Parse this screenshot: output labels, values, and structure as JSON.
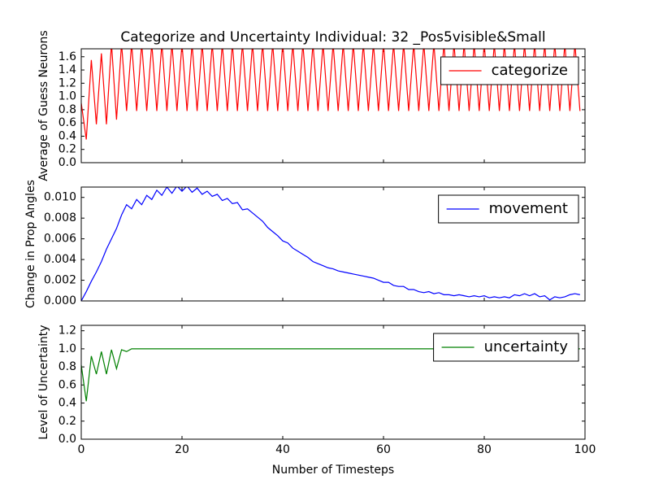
{
  "chart_data": [
    {
      "type": "line",
      "title": "Categorize and Uncertainty Individual: 32 _Pos5visible&Small",
      "ylabel": "Average of Guess Neurons",
      "x": [
        0,
        1,
        2,
        3,
        4,
        5,
        6,
        7,
        8,
        9,
        10,
        11,
        12,
        13,
        14,
        15,
        16,
        17,
        18,
        19,
        20,
        21,
        22,
        23,
        24,
        25,
        26,
        27,
        28,
        29,
        30,
        31,
        32,
        33,
        34,
        35,
        36,
        37,
        38,
        39,
        40,
        41,
        42,
        43,
        44,
        45,
        46,
        47,
        48,
        49,
        50,
        51,
        52,
        53,
        54,
        55,
        56,
        57,
        58,
        59,
        60,
        61,
        62,
        63,
        64,
        65,
        66,
        67,
        68,
        69,
        70,
        71,
        72,
        73,
        74,
        75,
        76,
        77,
        78,
        79,
        80,
        81,
        82,
        83,
        84,
        85,
        86,
        87,
        88,
        89,
        90,
        91,
        92,
        93,
        94,
        95,
        96,
        97,
        98,
        99
      ],
      "series": [
        {
          "name": "categorize",
          "color": "#ff0000",
          "values": [
            0.9,
            0.35,
            1.55,
            0.58,
            1.65,
            0.58,
            1.8,
            0.65,
            1.8,
            0.78,
            1.8,
            0.78,
            1.8,
            0.78,
            1.8,
            0.78,
            1.8,
            0.78,
            1.8,
            0.78,
            1.8,
            0.78,
            1.8,
            0.78,
            1.8,
            0.78,
            1.8,
            0.78,
            1.8,
            0.78,
            1.8,
            0.78,
            1.8,
            0.78,
            1.8,
            0.78,
            1.8,
            0.78,
            1.8,
            0.78,
            1.8,
            0.78,
            1.8,
            0.78,
            1.8,
            0.78,
            1.8,
            0.78,
            1.8,
            0.78,
            1.8,
            0.78,
            1.8,
            0.78,
            1.8,
            0.78,
            1.8,
            0.78,
            1.8,
            0.78,
            1.8,
            0.78,
            1.8,
            0.78,
            1.8,
            0.78,
            1.8,
            0.78,
            1.8,
            0.78,
            1.8,
            0.78,
            1.8,
            0.78,
            1.8,
            0.78,
            1.8,
            0.78,
            1.8,
            0.78,
            1.8,
            0.78,
            1.8,
            0.78,
            1.8,
            0.78,
            1.8,
            0.78,
            1.8,
            0.78,
            1.8,
            0.78,
            1.8,
            0.78,
            1.8,
            0.78,
            1.8,
            0.78,
            1.8,
            0.78
          ]
        }
      ],
      "xlim": [
        0,
        100
      ],
      "ylim": [
        0,
        1.72
      ],
      "yticks": [
        {
          "value": 0,
          "label": "0.0"
        },
        {
          "value": 0.2,
          "label": "0.2"
        },
        {
          "value": 0.4,
          "label": "0.4"
        },
        {
          "value": 0.6,
          "label": "0.6"
        },
        {
          "value": 0.8,
          "label": "0.8"
        },
        {
          "value": 1,
          "label": "1.0"
        },
        {
          "value": 1.2,
          "label": "1.2"
        },
        {
          "value": 1.4,
          "label": "1.4"
        },
        {
          "value": 1.6,
          "label": "1.6"
        }
      ],
      "legend": "upper right"
    },
    {
      "type": "line",
      "ylabel": "Change in Prop Angles",
      "x": [
        0,
        1,
        2,
        3,
        4,
        5,
        6,
        7,
        8,
        9,
        10,
        11,
        12,
        13,
        14,
        15,
        16,
        17,
        18,
        19,
        20,
        21,
        22,
        23,
        24,
        25,
        26,
        27,
        28,
        29,
        30,
        31,
        32,
        33,
        34,
        35,
        36,
        37,
        38,
        39,
        40,
        41,
        42,
        43,
        44,
        45,
        46,
        47,
        48,
        49,
        50,
        51,
        52,
        53,
        54,
        55,
        56,
        57,
        58,
        59,
        60,
        61,
        62,
        63,
        64,
        65,
        66,
        67,
        68,
        69,
        70,
        71,
        72,
        73,
        74,
        75,
        76,
        77,
        78,
        79,
        80,
        81,
        82,
        83,
        84,
        85,
        86,
        87,
        88,
        89,
        90,
        91,
        92,
        93,
        94,
        95,
        96,
        97,
        98,
        99
      ],
      "series": [
        {
          "name": "movement",
          "color": "#0000ff",
          "values": [
            0.0,
            0.0009,
            0.0019,
            0.0028,
            0.0038,
            0.005,
            0.006,
            0.007,
            0.0083,
            0.0093,
            0.0089,
            0.0098,
            0.0093,
            0.0102,
            0.0098,
            0.0107,
            0.0102,
            0.011,
            0.0104,
            0.0111,
            0.0106,
            0.0111,
            0.0105,
            0.0109,
            0.0103,
            0.0106,
            0.0101,
            0.0103,
            0.0097,
            0.0099,
            0.0094,
            0.0095,
            0.0088,
            0.0089,
            0.0085,
            0.0081,
            0.0077,
            0.0071,
            0.0067,
            0.0063,
            0.0058,
            0.0056,
            0.0051,
            0.0048,
            0.0045,
            0.0042,
            0.0038,
            0.0036,
            0.0034,
            0.0032,
            0.0031,
            0.0029,
            0.0028,
            0.0027,
            0.0026,
            0.0025,
            0.0024,
            0.0023,
            0.0022,
            0.002,
            0.0018,
            0.0018,
            0.0015,
            0.0014,
            0.0014,
            0.0011,
            0.0011,
            0.0009,
            0.0008,
            0.0009,
            0.0007,
            0.0008,
            0.0006,
            0.0006,
            0.0005,
            0.0006,
            0.0005,
            0.0004,
            0.0005,
            0.0004,
            0.0005,
            0.0003,
            0.0004,
            0.0003,
            0.0004,
            0.0003,
            0.0006,
            0.0005,
            0.0007,
            0.0005,
            0.0007,
            0.0004,
            0.0005,
            0.0001,
            0.0004,
            0.0003,
            0.0004,
            0.0006,
            0.0007,
            0.0006
          ]
        }
      ],
      "xlim": [
        0,
        100
      ],
      "ylim": [
        0,
        0.011
      ],
      "yticks": [
        {
          "value": 0,
          "label": "0.000"
        },
        {
          "value": 0.002,
          "label": "0.002"
        },
        {
          "value": 0.004,
          "label": "0.004"
        },
        {
          "value": 0.006,
          "label": "0.006"
        },
        {
          "value": 0.008,
          "label": "0.008"
        },
        {
          "value": 0.01,
          "label": "0.010"
        }
      ],
      "legend": "upper right"
    },
    {
      "type": "line",
      "ylabel": "Level of Uncertainty",
      "xlabel": "Number of Timesteps",
      "x": [
        0,
        1,
        2,
        3,
        4,
        5,
        6,
        7,
        8,
        9,
        10,
        11,
        12,
        13,
        14,
        15,
        16,
        17,
        18,
        19,
        20,
        21,
        22,
        23,
        24,
        25,
        26,
        27,
        28,
        29,
        30,
        31,
        32,
        33,
        34,
        35,
        36,
        37,
        38,
        39,
        40,
        41,
        42,
        43,
        44,
        45,
        46,
        47,
        48,
        49,
        50,
        51,
        52,
        53,
        54,
        55,
        56,
        57,
        58,
        59,
        60,
        61,
        62,
        63,
        64,
        65,
        66,
        67,
        68,
        69,
        70,
        71,
        72,
        73,
        74,
        75,
        76,
        77,
        78,
        79,
        80,
        81,
        82,
        83,
        84,
        85,
        86,
        87,
        88,
        89,
        90,
        91,
        92,
        93,
        94,
        95,
        96,
        97,
        98,
        99
      ],
      "series": [
        {
          "name": "uncertainty",
          "color": "#008000",
          "values": [
            0.82,
            0.42,
            0.92,
            0.72,
            0.97,
            0.72,
            0.99,
            0.78,
            0.99,
            0.97,
            1,
            1,
            1,
            1,
            1,
            1,
            1,
            1,
            1,
            1,
            1,
            1,
            1,
            1,
            1,
            1,
            1,
            1,
            1,
            1,
            1,
            1,
            1,
            1,
            1,
            1,
            1,
            1,
            1,
            1,
            1,
            1,
            1,
            1,
            1,
            1,
            1,
            1,
            1,
            1,
            1,
            1,
            1,
            1,
            1,
            1,
            1,
            1,
            1,
            1,
            1,
            1,
            1,
            1,
            1,
            1,
            1,
            1,
            1,
            1,
            1,
            1,
            1,
            1,
            1,
            1,
            1,
            1,
            1,
            1,
            1,
            1,
            1,
            1,
            1,
            1,
            1,
            1,
            1,
            1,
            1,
            1,
            1,
            1,
            1,
            1,
            1,
            1,
            1,
            1
          ]
        }
      ],
      "xlim": [
        0,
        100
      ],
      "ylim": [
        0,
        1.26
      ],
      "xticks": [
        0,
        20,
        40,
        60,
        80,
        100
      ],
      "yticks": [
        {
          "value": 0,
          "label": "0.0"
        },
        {
          "value": 0.2,
          "label": "0.2"
        },
        {
          "value": 0.4,
          "label": "0.4"
        },
        {
          "value": 0.6,
          "label": "0.6"
        },
        {
          "value": 0.8,
          "label": "0.8"
        },
        {
          "value": 1,
          "label": "1.0"
        },
        {
          "value": 1.2,
          "label": "1.2"
        }
      ],
      "legend": "upper right"
    }
  ]
}
